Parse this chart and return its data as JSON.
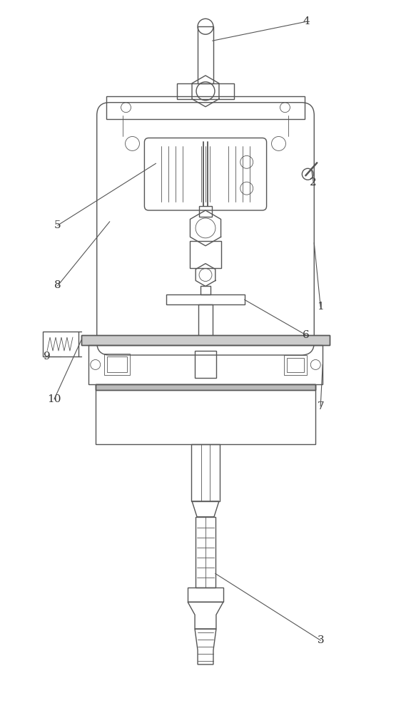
{
  "bg_color": "#ffffff",
  "line_color": "#555555",
  "lw": 1.0,
  "tlw": 0.6,
  "fig_w": 5.76,
  "fig_h": 10.0
}
